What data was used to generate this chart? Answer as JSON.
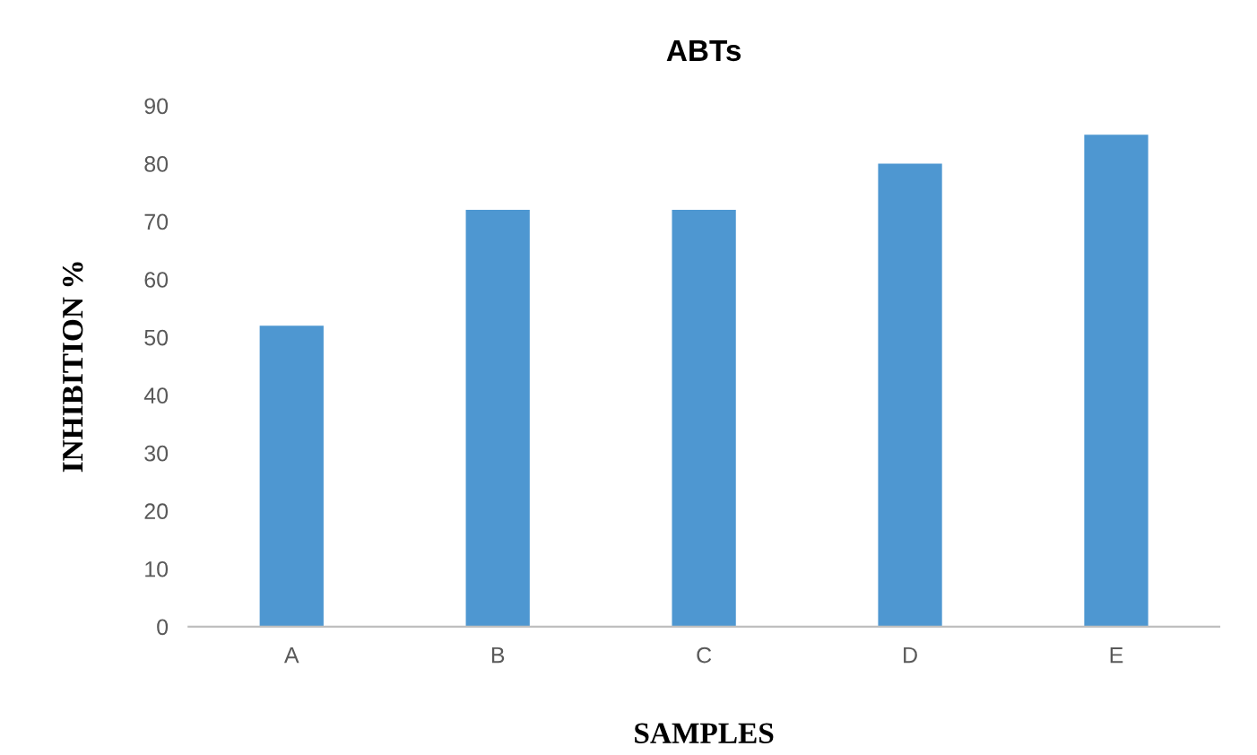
{
  "chart_data": {
    "type": "bar",
    "title": "ABTs",
    "xlabel": "SAMPLES",
    "ylabel": "INHIBITION %",
    "categories": [
      "A",
      "B",
      "C",
      "D",
      "E"
    ],
    "values": [
      52,
      72,
      72,
      80,
      85
    ],
    "color": "#4e97d1",
    "ylim": [
      0,
      90
    ],
    "yticks": [
      0,
      10,
      20,
      30,
      40,
      50,
      60,
      70,
      80,
      90
    ],
    "grid": false
  }
}
